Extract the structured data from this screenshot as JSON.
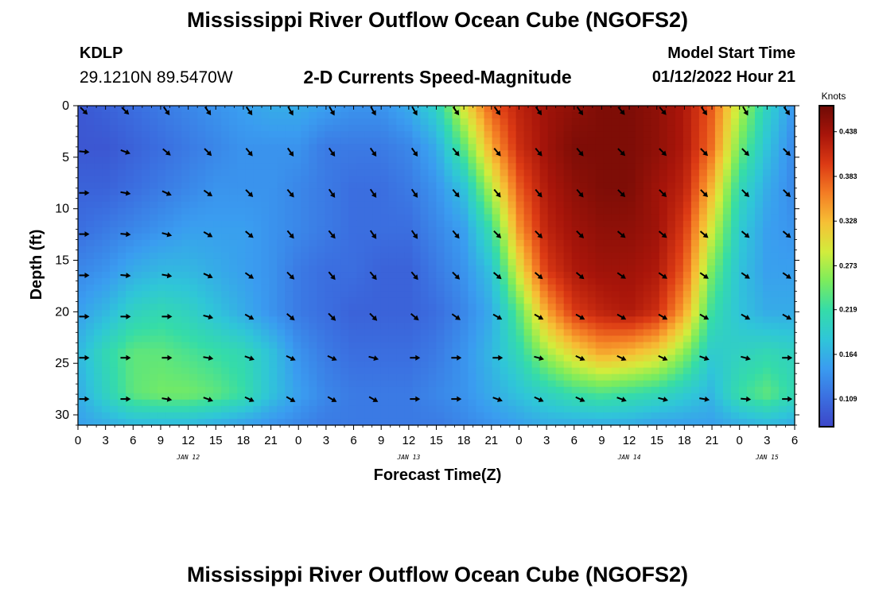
{
  "header": {
    "title": "Mississippi River Outflow Ocean Cube (NGOFS2)",
    "station_id": "KDLP",
    "station_coords": "29.1210N  89.5470W",
    "subtitle": "2-D Currents Speed-Magnitude",
    "start_label": "Model Start Time",
    "start_value": "01/12/2022 Hour 21"
  },
  "footer": {
    "title": "Mississippi River Outflow Ocean Cube (NGOFS2)"
  },
  "colors": {
    "scale": [
      "#3c46c8",
      "#3b6fe0",
      "#3a9cf0",
      "#2fc6d8",
      "#35dca8",
      "#7cec5c",
      "#d2ec3c",
      "#f6c035",
      "#f47d24",
      "#dc3a14",
      "#a8150a",
      "#6e0a05"
    ],
    "arrow": "#000000"
  },
  "chart_data": {
    "type": "heatmap",
    "title": "2-D Currents Speed-Magnitude",
    "xlabel": "Forecast Time(Z)",
    "ylabel": "Depth (ft)",
    "x_ticks": [
      "0",
      "3",
      "6",
      "9",
      "12",
      "15",
      "18",
      "21",
      "0",
      "3",
      "6",
      "9",
      "12",
      "15",
      "18",
      "21",
      "0",
      "3",
      "6",
      "9",
      "12",
      "15",
      "18",
      "21",
      "0",
      "3",
      "6"
    ],
    "x_range_hours": [
      0,
      78
    ],
    "date_labels": [
      {
        "text": "JAN 12",
        "hour": 12
      },
      {
        "text": "JAN 13",
        "hour": 36
      },
      {
        "text": "JAN 14",
        "hour": 60
      },
      {
        "text": "JAN 15",
        "hour": 75
      }
    ],
    "y_ticks": [
      0,
      5,
      10,
      15,
      20,
      25,
      30
    ],
    "ylim": [
      0,
      31
    ],
    "colorbar": {
      "title": "Knots",
      "labels": [
        "0.438",
        "0.383",
        "0.328",
        "0.273",
        "0.219",
        "0.164",
        "0.109"
      ],
      "vmin": 0.075,
      "vmax": 0.47
    },
    "depths_ft": [
      0,
      4,
      8,
      12,
      16,
      20,
      24,
      28,
      31
    ],
    "hours": [
      0,
      3,
      6,
      9,
      12,
      15,
      18,
      21,
      24,
      27,
      30,
      33,
      36,
      39,
      42,
      45,
      48,
      51,
      54,
      57,
      60,
      63,
      66,
      69,
      72,
      75,
      78
    ],
    "speed_knots": [
      [
        0.09,
        0.1,
        0.11,
        0.12,
        0.13,
        0.14,
        0.15,
        0.16,
        0.16,
        0.15,
        0.14,
        0.14,
        0.16,
        0.2,
        0.3,
        0.38,
        0.42,
        0.44,
        0.45,
        0.46,
        0.46,
        0.45,
        0.43,
        0.38,
        0.28,
        0.2,
        0.14
      ],
      [
        0.09,
        0.09,
        0.1,
        0.11,
        0.12,
        0.13,
        0.14,
        0.14,
        0.14,
        0.12,
        0.12,
        0.12,
        0.13,
        0.16,
        0.24,
        0.34,
        0.41,
        0.44,
        0.46,
        0.46,
        0.46,
        0.45,
        0.43,
        0.37,
        0.25,
        0.18,
        0.13
      ],
      [
        0.1,
        0.1,
        0.11,
        0.12,
        0.13,
        0.14,
        0.14,
        0.14,
        0.13,
        0.12,
        0.11,
        0.11,
        0.12,
        0.14,
        0.18,
        0.28,
        0.38,
        0.43,
        0.45,
        0.46,
        0.46,
        0.44,
        0.42,
        0.33,
        0.21,
        0.16,
        0.13
      ],
      [
        0.11,
        0.12,
        0.13,
        0.14,
        0.15,
        0.15,
        0.15,
        0.14,
        0.13,
        0.12,
        0.11,
        0.11,
        0.11,
        0.13,
        0.15,
        0.22,
        0.35,
        0.42,
        0.44,
        0.45,
        0.45,
        0.44,
        0.4,
        0.29,
        0.19,
        0.15,
        0.14
      ],
      [
        0.13,
        0.14,
        0.16,
        0.17,
        0.17,
        0.16,
        0.15,
        0.14,
        0.12,
        0.11,
        0.11,
        0.1,
        0.1,
        0.12,
        0.14,
        0.18,
        0.3,
        0.4,
        0.43,
        0.44,
        0.44,
        0.43,
        0.38,
        0.25,
        0.18,
        0.15,
        0.15
      ],
      [
        0.15,
        0.17,
        0.2,
        0.21,
        0.2,
        0.18,
        0.16,
        0.14,
        0.12,
        0.11,
        0.1,
        0.1,
        0.1,
        0.11,
        0.13,
        0.16,
        0.24,
        0.34,
        0.4,
        0.42,
        0.43,
        0.41,
        0.34,
        0.22,
        0.18,
        0.16,
        0.16
      ],
      [
        0.17,
        0.21,
        0.24,
        0.24,
        0.23,
        0.22,
        0.21,
        0.18,
        0.14,
        0.12,
        0.11,
        0.11,
        0.11,
        0.12,
        0.14,
        0.17,
        0.21,
        0.27,
        0.31,
        0.34,
        0.33,
        0.31,
        0.26,
        0.19,
        0.2,
        0.21,
        0.2
      ],
      [
        0.16,
        0.2,
        0.24,
        0.25,
        0.25,
        0.24,
        0.22,
        0.18,
        0.15,
        0.13,
        0.12,
        0.12,
        0.12,
        0.13,
        0.14,
        0.16,
        0.18,
        0.2,
        0.22,
        0.23,
        0.22,
        0.21,
        0.19,
        0.17,
        0.22,
        0.24,
        0.21
      ],
      [
        0.15,
        0.16,
        0.17,
        0.17,
        0.17,
        0.16,
        0.15,
        0.14,
        0.13,
        0.12,
        0.12,
        0.12,
        0.12,
        0.12,
        0.13,
        0.14,
        0.15,
        0.16,
        0.16,
        0.16,
        0.16,
        0.15,
        0.15,
        0.15,
        0.16,
        0.17,
        0.16
      ]
    ],
    "vector_hours": [
      0,
      9,
      18,
      27,
      36,
      45,
      54,
      63,
      72,
      81,
      90,
      99,
      108,
      117,
      126,
      135,
      144,
      153
    ],
    "vector_hours_unit": "x-scale tenths: hour values multiplied by 0.5",
    "vector_hour_values": [
      0,
      4.5,
      9,
      13.5,
      18,
      22.5,
      27,
      31.5,
      36,
      40.5,
      45,
      49.5,
      54,
      58.5,
      63,
      67.5,
      72,
      76.5
    ],
    "vector_depths_ft": [
      0,
      4,
      8,
      12,
      16,
      20,
      24,
      28
    ],
    "vector_direction_deg": [
      [
        45,
        45,
        55,
        55,
        55,
        60,
        60,
        60,
        60,
        55,
        55,
        55,
        55,
        50,
        50,
        55,
        60,
        55
      ],
      [
        5,
        20,
        40,
        45,
        50,
        55,
        55,
        55,
        55,
        50,
        50,
        50,
        50,
        45,
        45,
        45,
        45,
        45
      ],
      [
        0,
        10,
        25,
        35,
        45,
        50,
        55,
        55,
        55,
        50,
        50,
        50,
        50,
        45,
        45,
        45,
        45,
        45
      ],
      [
        0,
        5,
        15,
        30,
        40,
        50,
        50,
        55,
        55,
        50,
        45,
        45,
        45,
        40,
        40,
        40,
        40,
        40
      ],
      [
        0,
        5,
        10,
        25,
        35,
        45,
        50,
        50,
        50,
        45,
        40,
        40,
        40,
        35,
        35,
        35,
        35,
        35
      ],
      [
        0,
        0,
        0,
        15,
        30,
        40,
        45,
        45,
        40,
        35,
        30,
        30,
        30,
        30,
        30,
        30,
        30,
        30
      ],
      [
        0,
        0,
        0,
        10,
        20,
        25,
        25,
        15,
        0,
        0,
        0,
        15,
        25,
        25,
        25,
        20,
        15,
        0
      ],
      [
        0,
        0,
        10,
        20,
        25,
        30,
        30,
        30,
        0,
        0,
        20,
        25,
        25,
        20,
        15,
        10,
        5,
        0
      ]
    ]
  }
}
